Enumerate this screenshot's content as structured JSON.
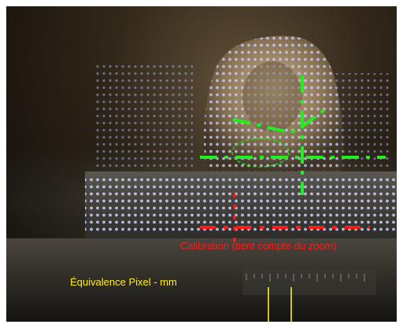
{
  "annotations": {
    "calibration_label": "Calibration (tient compte du zoom)",
    "pixel_equivalence_label": "Équivalence Pixel - mm"
  },
  "colors": {
    "calibration": "#ff1a1a",
    "pixel_equivalence": "#ffee22",
    "detection": "#22ee22"
  }
}
